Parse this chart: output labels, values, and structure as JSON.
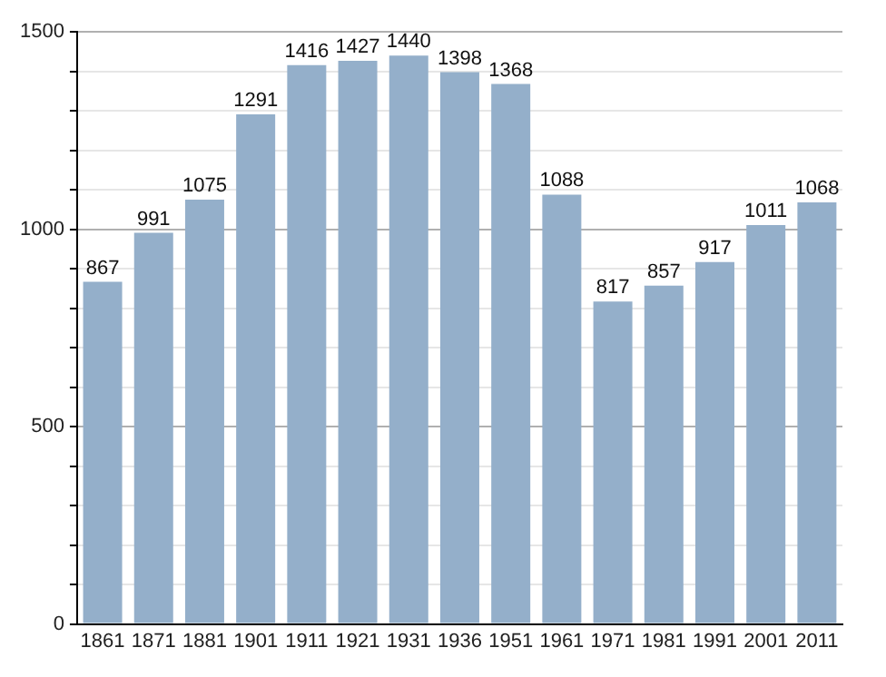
{
  "chart_data": {
    "type": "bar",
    "categories": [
      "1861",
      "1871",
      "1881",
      "1901",
      "1911",
      "1921",
      "1931",
      "1936",
      "1951",
      "1961",
      "1971",
      "1981",
      "1991",
      "2001",
      "2011"
    ],
    "values": [
      867,
      991,
      1075,
      1291,
      1416,
      1427,
      1440,
      1398,
      1368,
      1088,
      817,
      857,
      917,
      1011,
      1068
    ],
    "color": "#94afca",
    "ylim": [
      0,
      1500
    ],
    "yticks": [
      0,
      {
        "value": 100,
        "label": null
      },
      {
        "value": 200,
        "label": null
      },
      {
        "value": 300,
        "label": null
      },
      {
        "value": 400,
        "label": null
      },
      500,
      {
        "value": 600,
        "label": null
      },
      {
        "value": 700,
        "label": null
      },
      {
        "value": 800,
        "label": null
      },
      {
        "value": 900,
        "label": null
      },
      1000,
      {
        "value": 1100,
        "label": null
      },
      {
        "value": 1200,
        "label": null
      },
      {
        "value": 1300,
        "label": null
      },
      {
        "value": 1400,
        "label": null
      },
      1500
    ],
    "grid": "y",
    "data_labels": true
  }
}
